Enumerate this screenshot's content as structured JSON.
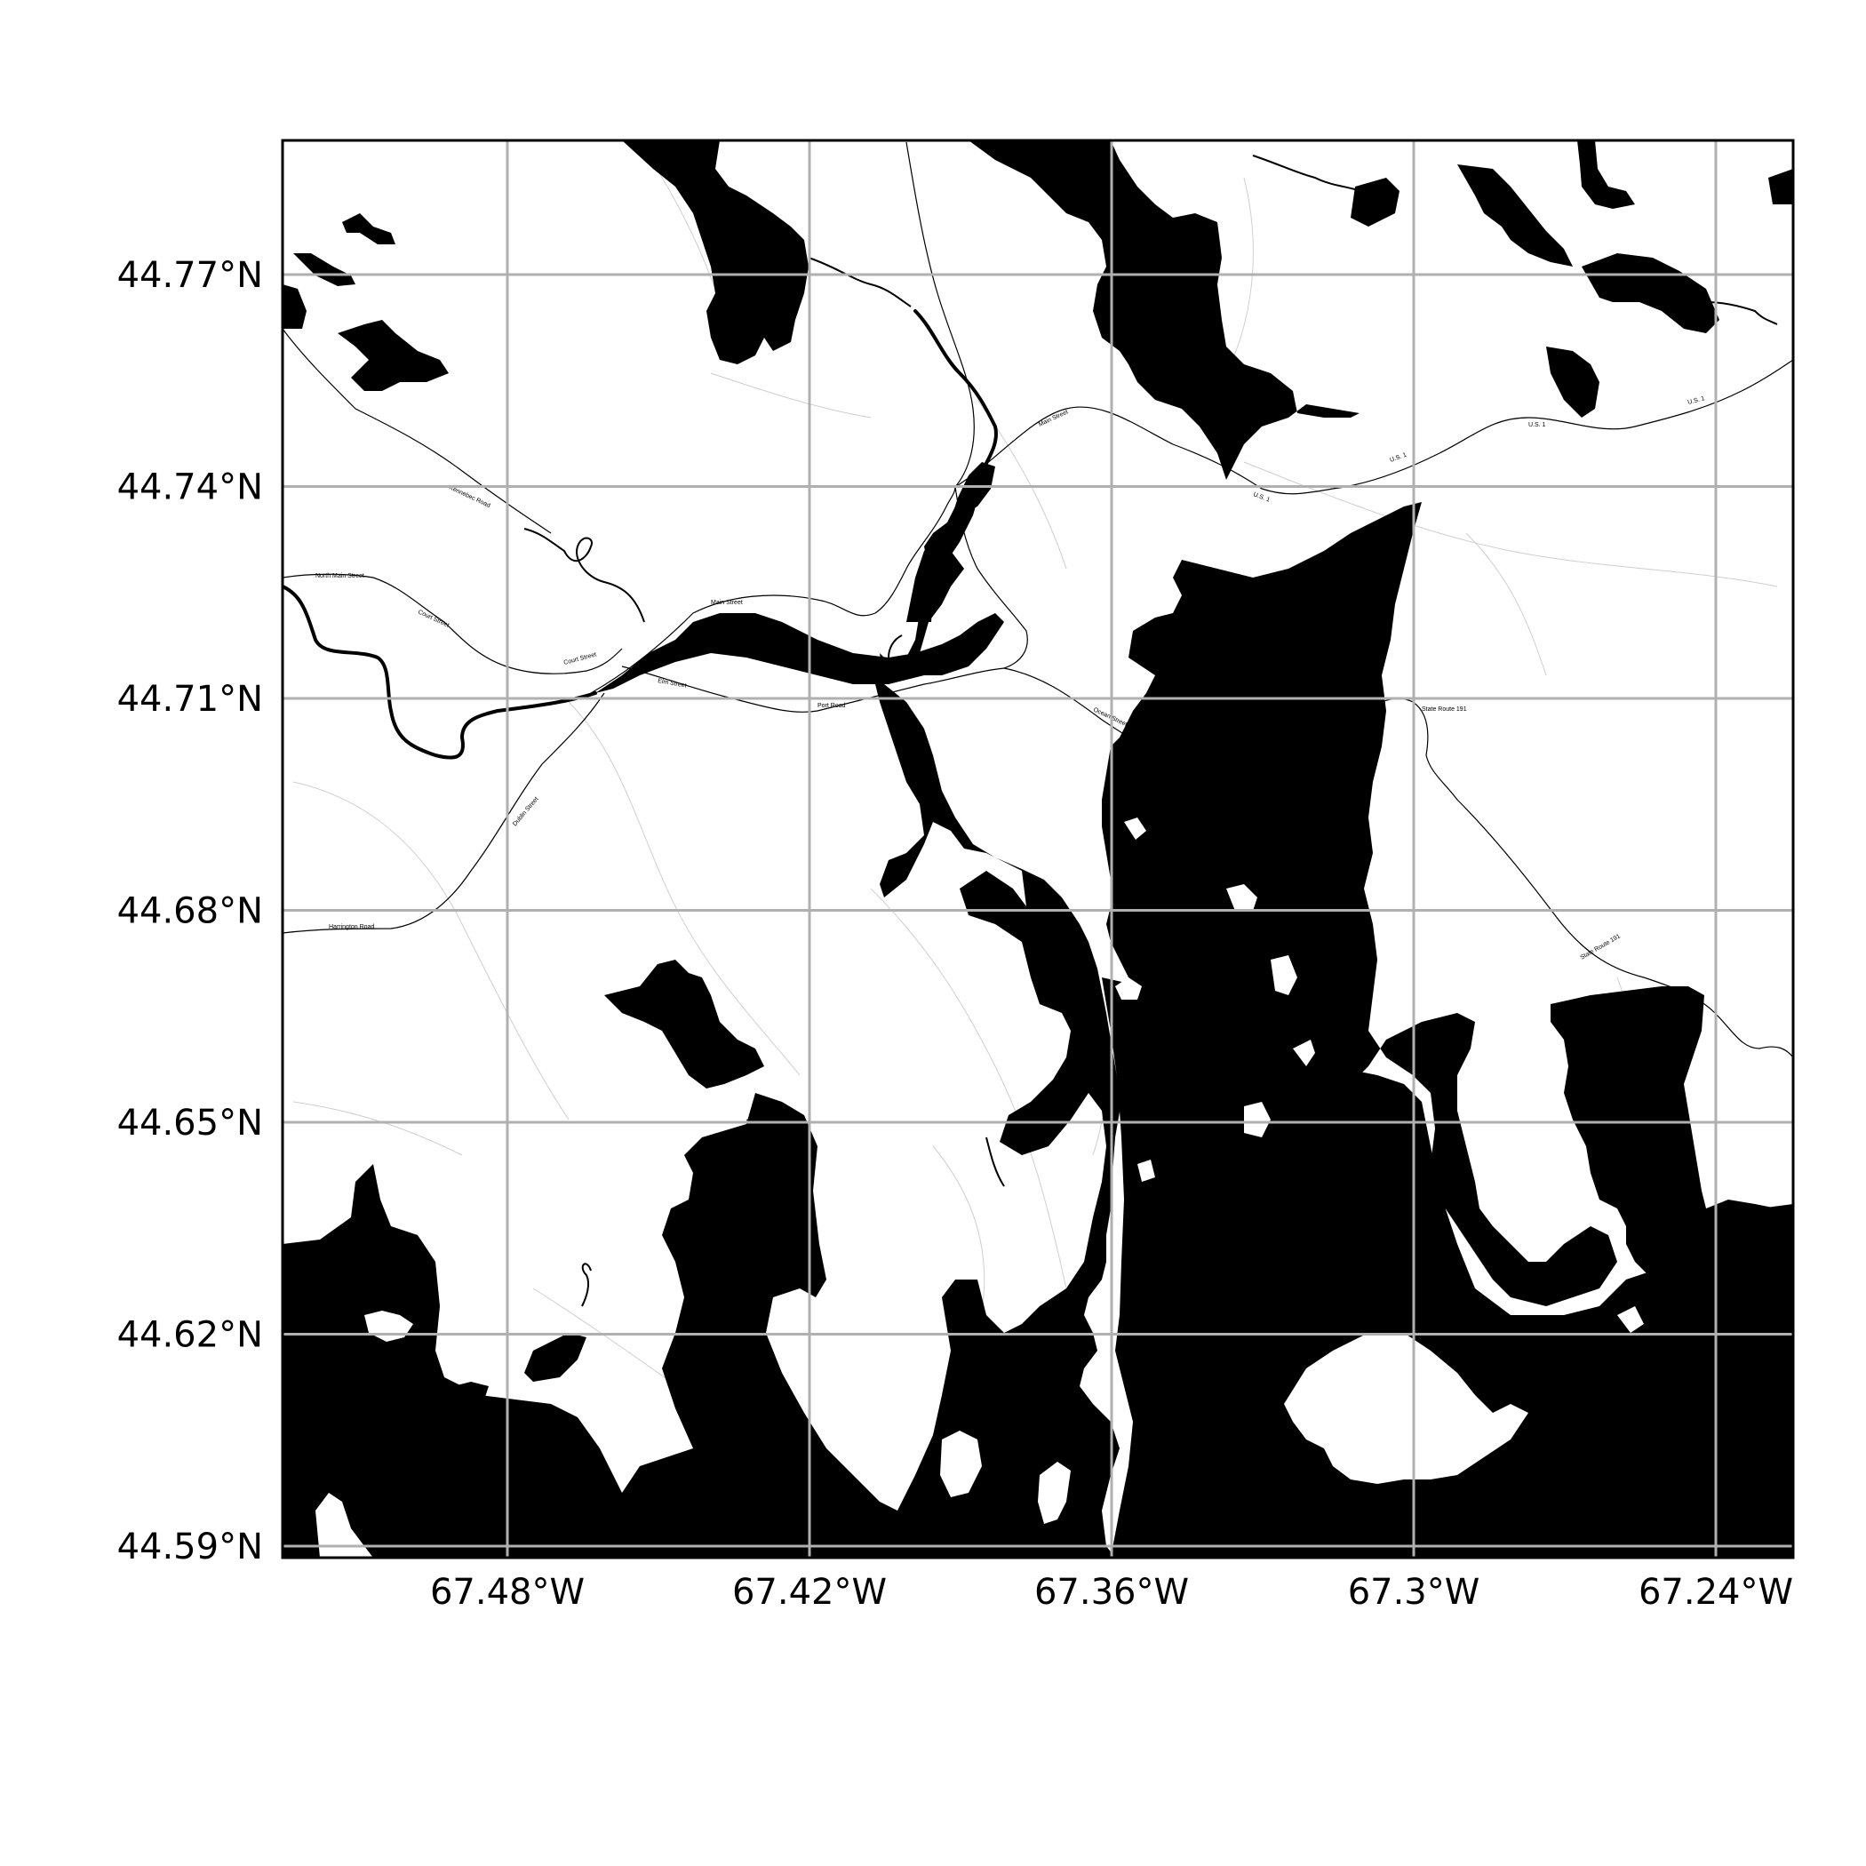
{
  "map": {
    "colors": {
      "water": "#000000",
      "land": "#ffffff",
      "grid": "#b0b0b0",
      "frame": "#000000",
      "road": "#000000",
      "minor_road": "#cfcfcf"
    },
    "grid": true,
    "x_axis": {
      "ticks": [
        {
          "value": -67.48,
          "label": "67.48°W"
        },
        {
          "value": -67.42,
          "label": "67.42°W"
        },
        {
          "value": -67.36,
          "label": "67.36°W"
        },
        {
          "value": -67.3,
          "label": "67.3°W"
        },
        {
          "value": -67.24,
          "label": "67.24°W"
        }
      ]
    },
    "y_axis": {
      "ticks": [
        {
          "value": 44.77,
          "label": "44.77°N"
        },
        {
          "value": 44.74,
          "label": "44.74°N"
        },
        {
          "value": 44.71,
          "label": "44.71°N"
        },
        {
          "value": 44.68,
          "label": "44.68°N"
        },
        {
          "value": 44.65,
          "label": "44.65°N"
        },
        {
          "value": 44.62,
          "label": "44.62°N"
        },
        {
          "value": 44.59,
          "label": "44.59°N"
        }
      ]
    },
    "road_labels": [
      "North Main Street",
      "Court Street",
      "Main Street",
      "Elm Street",
      "Port Road",
      "Ocean Street",
      "Main Street",
      "U.S. 1",
      "U.S. 1",
      "U.S. 1",
      "U.S. 1",
      "State Route 191",
      "State Route 191",
      "Harrington Road",
      "Dublin Street",
      "Court Street",
      "Kennebec Road",
      "Cutler Road"
    ]
  }
}
